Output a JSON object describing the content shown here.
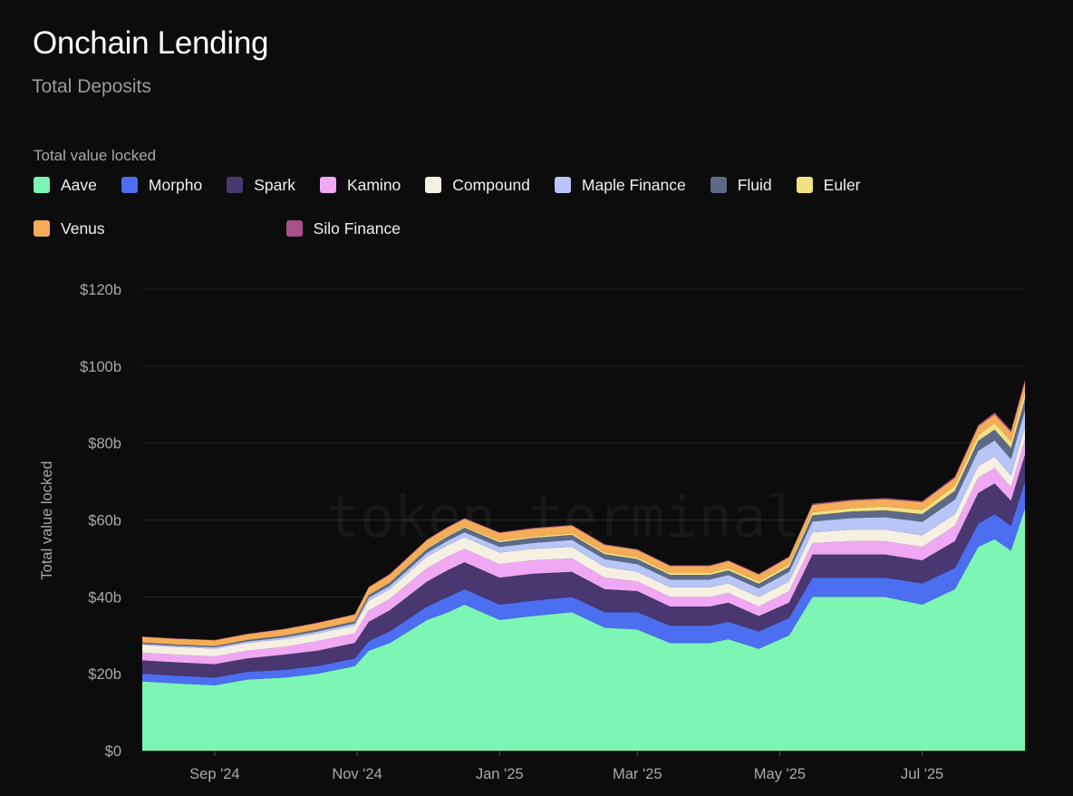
{
  "header": {
    "title": "Onchain Lending",
    "subtitle": "Total Deposits"
  },
  "watermark": "token terminal_",
  "chart_data": {
    "type": "area",
    "stacked": true,
    "legend_title": "Total value locked",
    "legend_position": "top-left",
    "ylabel": "Total value locked",
    "y_unit": "$b",
    "ylim": [
      0,
      120
    ],
    "yticks": [
      0,
      20,
      40,
      60,
      80,
      100,
      120
    ],
    "ytick_labels": [
      "$0",
      "$20b",
      "$40b",
      "$60b",
      "$80b",
      "$100b",
      "$120b"
    ],
    "grid": true,
    "x_range": [
      "2024-08-01",
      "2025-08-14"
    ],
    "xticks": [
      "2024-09-01",
      "2024-11-01",
      "2025-01-01",
      "2025-03-01",
      "2025-05-01",
      "2025-07-01"
    ],
    "xtick_labels": [
      "Sep '24",
      "Nov '24",
      "Jan '25",
      "Mar '25",
      "May '25",
      "Jul '25"
    ],
    "x": [
      "2024-08-01",
      "2024-08-15",
      "2024-09-01",
      "2024-09-15",
      "2024-10-01",
      "2024-10-15",
      "2024-10-31",
      "2024-11-06",
      "2024-11-15",
      "2024-12-01",
      "2024-12-10",
      "2024-12-17",
      "2025-01-01",
      "2025-01-15",
      "2025-02-01",
      "2025-02-15",
      "2025-03-01",
      "2025-03-15",
      "2025-04-01",
      "2025-04-09",
      "2025-04-22",
      "2025-05-05",
      "2025-05-15",
      "2025-06-01",
      "2025-06-15",
      "2025-07-01",
      "2025-07-15",
      "2025-07-25",
      "2025-08-01",
      "2025-08-08",
      "2025-08-14"
    ],
    "series": [
      {
        "name": "Aave",
        "color": "#7df5b4",
        "values": [
          18.0,
          17.5,
          17.0,
          18.5,
          19.0,
          20.0,
          22.0,
          26.0,
          28.0,
          34.0,
          36.0,
          38.0,
          34.0,
          35.0,
          36.0,
          32.0,
          31.5,
          28.0,
          28.0,
          29.0,
          26.5,
          30.0,
          40.0,
          40.0,
          40.0,
          38.0,
          42.0,
          53.0,
          55.0,
          52.0,
          63.0
        ]
      },
      {
        "name": "Morpho",
        "color": "#4c6ef0",
        "values": [
          2.0,
          2.0,
          2.0,
          2.0,
          2.0,
          2.0,
          2.0,
          2.5,
          3.0,
          3.5,
          4.0,
          4.0,
          4.0,
          4.0,
          4.0,
          4.0,
          4.5,
          4.5,
          4.5,
          4.5,
          4.5,
          4.5,
          5.0,
          5.0,
          5.0,
          5.5,
          5.5,
          6.0,
          6.5,
          6.5,
          7.0
        ]
      },
      {
        "name": "Spark",
        "color": "#483770",
        "values": [
          3.5,
          3.5,
          3.5,
          3.5,
          4.0,
          4.0,
          4.0,
          5.0,
          5.5,
          6.5,
          7.0,
          7.0,
          7.0,
          7.0,
          6.5,
          6.0,
          5.5,
          5.0,
          5.0,
          5.0,
          4.0,
          4.0,
          6.0,
          6.0,
          6.0,
          6.0,
          7.0,
          8.0,
          8.0,
          6.5,
          7.0
        ]
      },
      {
        "name": "Kamino",
        "color": "#f1a8f4",
        "values": [
          2.0,
          2.0,
          2.0,
          2.0,
          2.0,
          2.5,
          2.5,
          3.0,
          3.0,
          3.5,
          3.5,
          3.5,
          3.5,
          3.5,
          3.5,
          3.0,
          2.5,
          2.5,
          2.5,
          2.5,
          2.5,
          3.0,
          3.0,
          3.5,
          3.5,
          3.5,
          4.0,
          4.0,
          4.0,
          3.5,
          4.0
        ]
      },
      {
        "name": "Compound",
        "color": "#f6f0e3",
        "values": [
          2.0,
          2.0,
          2.0,
          2.0,
          2.0,
          2.0,
          2.0,
          2.5,
          2.5,
          3.0,
          3.0,
          3.0,
          3.0,
          3.0,
          3.0,
          2.8,
          2.5,
          2.5,
          2.5,
          2.5,
          2.5,
          2.5,
          2.8,
          3.0,
          3.0,
          3.0,
          3.0,
          3.0,
          3.0,
          3.0,
          3.0
        ]
      },
      {
        "name": "Maple Finance",
        "color": "#b7c5f7",
        "values": [
          0.3,
          0.3,
          0.4,
          0.4,
          0.5,
          0.5,
          0.6,
          0.8,
          0.9,
          1.0,
          1.2,
          1.3,
          1.5,
          1.5,
          1.8,
          2.0,
          2.0,
          2.0,
          2.0,
          2.2,
          2.2,
          2.5,
          2.8,
          3.0,
          3.2,
          3.5,
          3.8,
          4.0,
          4.2,
          4.3,
          4.5
        ]
      },
      {
        "name": "Fluid",
        "color": "#5d6a87",
        "values": [
          0.3,
          0.3,
          0.3,
          0.4,
          0.4,
          0.5,
          0.5,
          0.7,
          0.8,
          1.0,
          1.1,
          1.2,
          1.2,
          1.3,
          1.3,
          1.3,
          1.3,
          1.2,
          1.2,
          1.2,
          1.2,
          1.3,
          1.6,
          1.7,
          1.8,
          2.0,
          2.3,
          2.6,
          2.8,
          2.9,
          3.0
        ]
      },
      {
        "name": "Euler",
        "color": "#f2e183",
        "values": [
          0.0,
          0.0,
          0.0,
          0.0,
          0.1,
          0.1,
          0.1,
          0.2,
          0.2,
          0.3,
          0.3,
          0.3,
          0.4,
          0.4,
          0.4,
          0.5,
          0.5,
          0.5,
          0.5,
          0.6,
          0.6,
          0.7,
          0.8,
          0.9,
          1.0,
          1.1,
          1.3,
          1.5,
          1.7,
          1.8,
          2.0
        ]
      },
      {
        "name": "Venus",
        "color": "#f4ac57",
        "values": [
          1.5,
          1.5,
          1.5,
          1.5,
          1.6,
          1.6,
          1.7,
          1.8,
          1.9,
          2.0,
          2.0,
          2.0,
          2.0,
          2.0,
          2.0,
          1.9,
          1.9,
          1.8,
          1.8,
          1.8,
          1.8,
          1.8,
          1.9,
          1.9,
          1.9,
          2.0,
          2.0,
          2.2,
          2.2,
          2.3,
          2.4
        ]
      },
      {
        "name": "Silo Finance",
        "color": "#a8508a",
        "values": [
          0.1,
          0.1,
          0.1,
          0.1,
          0.1,
          0.1,
          0.1,
          0.1,
          0.2,
          0.2,
          0.2,
          0.2,
          0.2,
          0.2,
          0.2,
          0.2,
          0.2,
          0.2,
          0.2,
          0.2,
          0.2,
          0.2,
          0.3,
          0.3,
          0.3,
          0.3,
          0.4,
          0.4,
          0.5,
          0.5,
          0.6
        ]
      }
    ]
  }
}
